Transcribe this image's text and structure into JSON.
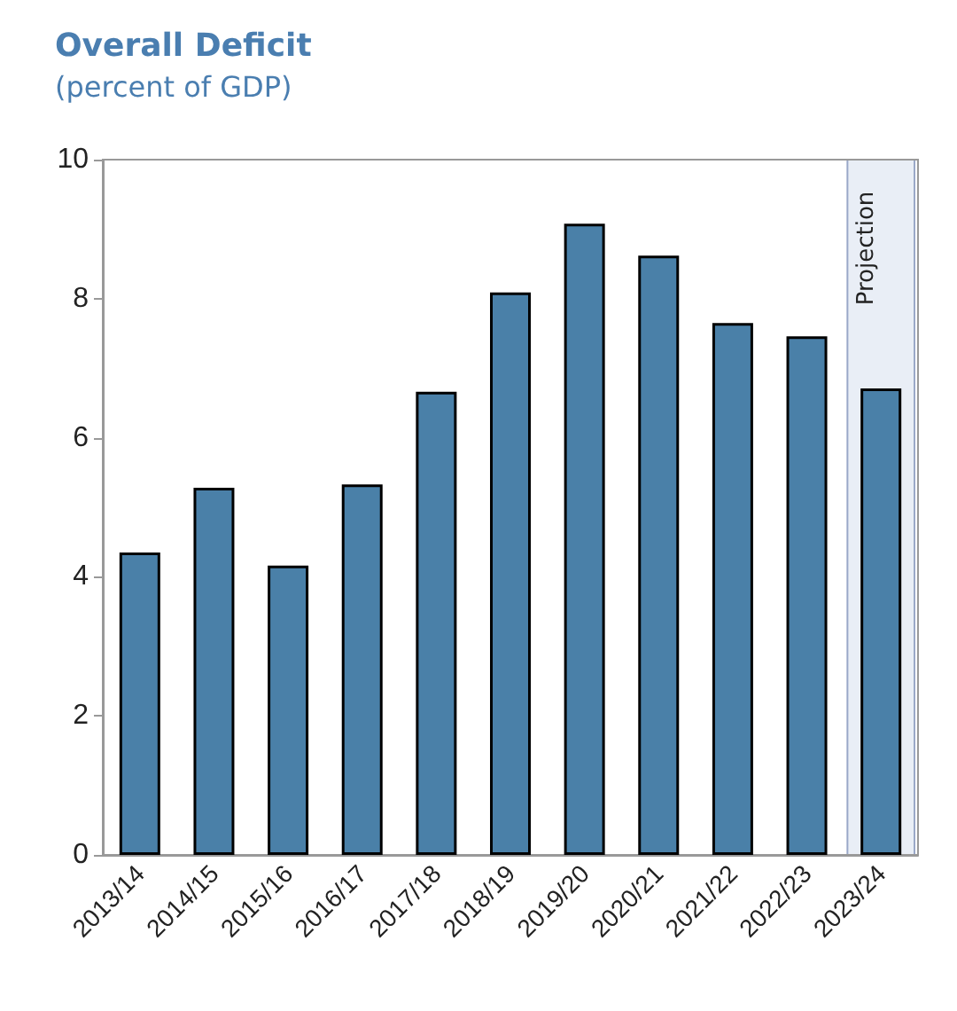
{
  "chart_data": {
    "type": "bar",
    "title": "Overall Deficit",
    "subtitle": "(percent of GDP)",
    "categories": [
      "2013/14",
      "2014/15",
      "2015/16",
      "2016/17",
      "2017/18",
      "2018/19",
      "2019/20",
      "2020/21",
      "2021/22",
      "2022/23",
      "2023/24"
    ],
    "values": [
      4.35,
      5.28,
      4.16,
      5.33,
      6.66,
      8.09,
      9.08,
      8.62,
      7.65,
      7.46,
      6.71
    ],
    "color": "#4a80a8",
    "ylim": [
      0,
      10
    ],
    "yticks": [
      0,
      2,
      4,
      6,
      8,
      10
    ],
    "grid": false,
    "bands": [
      {
        "axis": "x",
        "from": "2023/24",
        "to": "2023/24",
        "label": "Projection",
        "color": "#e9eef6"
      }
    ]
  }
}
